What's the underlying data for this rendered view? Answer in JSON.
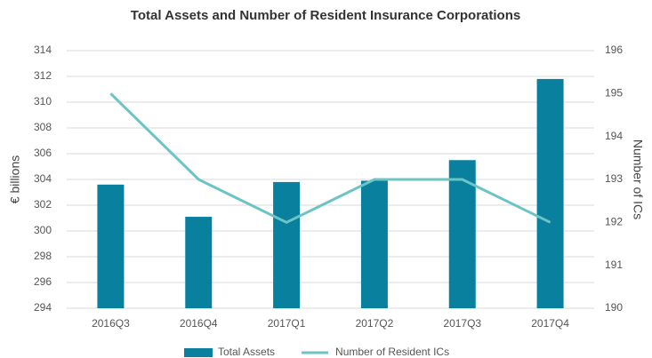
{
  "chart_data": {
    "type": "bar",
    "title": "Total Assets and Number of Resident Insurance Corporations",
    "y_label": "€ billions",
    "y2_label": "Number of ICs",
    "categories": [
      "2016Q3",
      "2016Q4",
      "2017Q1",
      "2017Q2",
      "2017Q3",
      "2017Q4"
    ],
    "series": [
      {
        "name": "Total Assets",
        "type": "bar",
        "color": "#0a809f",
        "values": [
          303.6,
          301.1,
          303.8,
          303.9,
          305.5,
          311.8
        ]
      },
      {
        "name": "Number of Resident ICs",
        "type": "line",
        "axis": "y2",
        "color": "#6cc4c4",
        "values": [
          195,
          193,
          192,
          193,
          193,
          192
        ]
      }
    ],
    "ylim": [
      294,
      314
    ],
    "yticks": [
      294,
      296,
      298,
      300,
      302,
      304,
      306,
      308,
      310,
      312,
      314
    ],
    "y2lim": [
      190,
      196
    ],
    "y2ticks": [
      190,
      191,
      192,
      193,
      194,
      195,
      196
    ],
    "grid": true,
    "legend": "bottom"
  }
}
